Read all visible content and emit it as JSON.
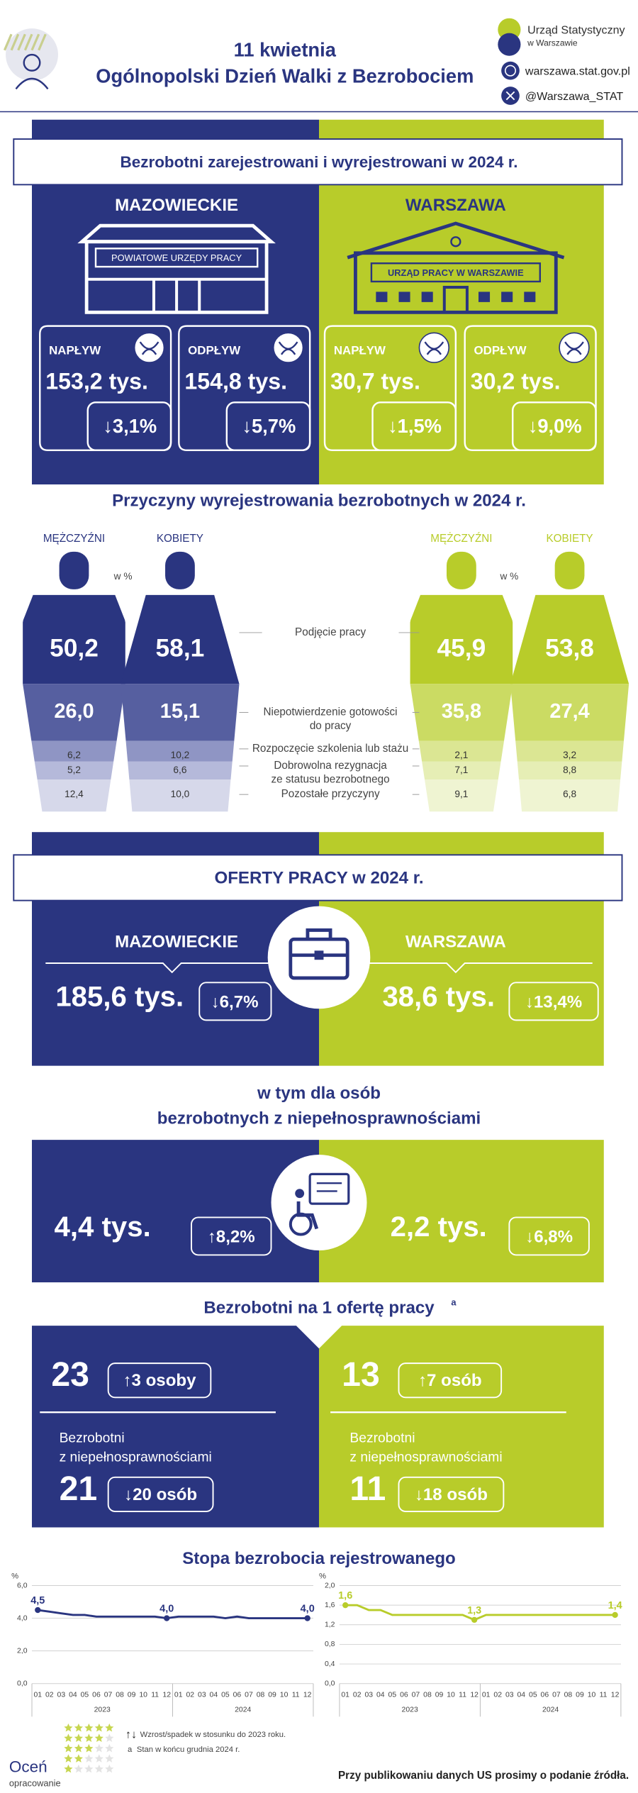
{
  "header": {
    "title_line1": "11 kwietnia",
    "title_line2": "Ogólnopolski Dzień Walki z Bezrobociem",
    "org_line1": "Urząd Statystyczny",
    "org_line2": "w Warszawie",
    "website": "warszawa.stat.gov.pl",
    "twitter": "@Warszawa_STAT"
  },
  "registered": {
    "title": "Bezrobotni zarejestrowani i wyrejestrowani w 2024 r.",
    "regions": [
      {
        "name": "MAZOWIECKIE",
        "building": "POWIATOWE URZĘDY PRACY",
        "inflow": {
          "label": "NAPŁYW",
          "value": "153,2 tys.",
          "change": "↓3,1%"
        },
        "outflow": {
          "label": "ODPŁYW",
          "value": "154,8 tys.",
          "change": "↓5,7%"
        }
      },
      {
        "name": "WARSZAWA",
        "building": "URZĄD PRACY W WARSZAWIE",
        "inflow": {
          "label": "NAPŁYW",
          "value": "30,7 tys.",
          "change": "↓1,5%"
        },
        "outflow": {
          "label": "ODPŁYW",
          "value": "30,2 tys.",
          "change": "↓9,0%"
        }
      }
    ]
  },
  "reasons": {
    "title": "Przyczyny wyrejestrowania bezrobotnych w 2024 r.",
    "unit": "w %",
    "groups": [
      {
        "label": "MĘŻCZYŹNI",
        "values": [
          "50,2",
          "26,0",
          "6,2",
          "5,2",
          "12,4"
        ]
      },
      {
        "label": "KOBIETY",
        "values": [
          "58,1",
          "15,1",
          "10,2",
          "6,6",
          "10,0"
        ]
      },
      {
        "label": "MĘŻCZYŹNI",
        "values": [
          "45,9",
          "35,8",
          "2,1",
          "7,1",
          "9,1"
        ]
      },
      {
        "label": "KOBIETY",
        "values": [
          "53,8",
          "27,4",
          "3,2",
          "8,8",
          "6,8"
        ]
      }
    ],
    "categories": [
      [
        "Podjęcie pracy"
      ],
      [
        "Niepotwierdzenie gotowości",
        "do pracy"
      ],
      [
        "Rozpoczęcie szkolenia lub stażu"
      ],
      [
        "Dobrowolna rezygnacja",
        "ze statusu bezrobotnego"
      ],
      [
        "Pozostałe przyczyny"
      ]
    ]
  },
  "offers": {
    "title": "OFERTY PRACY w 2024 r.",
    "regions": [
      {
        "name": "MAZOWIECKIE",
        "value": "185,6 tys.",
        "change": "↓6,7%"
      },
      {
        "name": "WARSZAWA",
        "value": "38,6 tys.",
        "change": "↓13,4%"
      }
    ]
  },
  "disabled_offers": {
    "title_line1": "w tym dla osób",
    "title_line2": "bezrobotnych z niepełnosprawnościami",
    "regions": [
      {
        "value": "4,4 tys.",
        "change": "↑8,2%"
      },
      {
        "value": "2,2 tys.",
        "change": "↓6,8%"
      }
    ]
  },
  "per_offer": {
    "title": "Bezrobotni na 1 ofertę pracy",
    "footnote_mark": "a",
    "regions": [
      {
        "total": "23",
        "total_change": "↑3 osoby",
        "disabled_label_line1": "Bezrobotni",
        "disabled_label_line2": "z niepełnosprawnościami",
        "disabled": "21",
        "disabled_change": "↓20 osób"
      },
      {
        "total": "13",
        "total_change": "↑7 osób",
        "disabled_label_line1": "Bezrobotni",
        "disabled_label_line2": "z niepełnosprawnościami",
        "disabled": "11",
        "disabled_change": "↓18 osób"
      }
    ]
  },
  "rate_title": "Stopa bezrobocia rejestrowanego",
  "chart_data": [
    {
      "type": "line",
      "y_label": "%",
      "categories": [
        "01",
        "02",
        "03",
        "04",
        "05",
        "06",
        "07",
        "08",
        "09",
        "10",
        "11",
        "12",
        "01",
        "02",
        "03",
        "04",
        "05",
        "06",
        "07",
        "08",
        "09",
        "10",
        "11",
        "12"
      ],
      "groups": [
        "2023",
        "2024"
      ],
      "values": [
        4.5,
        4.4,
        4.3,
        4.2,
        4.2,
        4.1,
        4.1,
        4.1,
        4.1,
        4.1,
        4.1,
        4.0,
        4.1,
        4.1,
        4.1,
        4.1,
        4.0,
        4.1,
        4.0,
        4.0,
        4.0,
        4.0,
        4.0,
        4.0
      ],
      "value_labels": [
        "4,5",
        null,
        null,
        null,
        null,
        null,
        null,
        null,
        null,
        null,
        null,
        "4,0",
        null,
        null,
        null,
        null,
        null,
        null,
        null,
        null,
        null,
        null,
        null,
        "4,0"
      ],
      "color": "#2a3580",
      "ylim": [
        0,
        6
      ],
      "yticks": [
        {
          "value": 0,
          "label": "0,0"
        },
        {
          "value": 2,
          "label": "2,0"
        },
        {
          "value": 4,
          "label": "4,0"
        },
        {
          "value": 6,
          "label": "6,0"
        }
      ],
      "grid": true
    },
    {
      "type": "line",
      "y_label": "%",
      "categories": [
        "01",
        "02",
        "03",
        "04",
        "05",
        "06",
        "07",
        "08",
        "09",
        "10",
        "11",
        "12",
        "01",
        "02",
        "03",
        "04",
        "05",
        "06",
        "07",
        "08",
        "09",
        "10",
        "11",
        "12"
      ],
      "groups": [
        "2023",
        "2024"
      ],
      "values": [
        1.6,
        1.6,
        1.5,
        1.5,
        1.4,
        1.4,
        1.4,
        1.4,
        1.4,
        1.4,
        1.4,
        1.3,
        1.4,
        1.4,
        1.4,
        1.4,
        1.4,
        1.4,
        1.4,
        1.4,
        1.4,
        1.4,
        1.4,
        1.4
      ],
      "value_labels": [
        "1,6",
        null,
        null,
        null,
        null,
        null,
        null,
        null,
        null,
        null,
        null,
        "1,3",
        null,
        null,
        null,
        null,
        null,
        null,
        null,
        null,
        null,
        null,
        null,
        "1,4"
      ],
      "color": "#b8cc2a",
      "ylim": [
        0,
        2
      ],
      "yticks": [
        {
          "value": 0,
          "label": "0,0"
        },
        {
          "value": 0.4,
          "label": "0,4"
        },
        {
          "value": 0.8,
          "label": "0,8"
        },
        {
          "value": 1.2,
          "label": "1,2"
        },
        {
          "value": 1.6,
          "label": "1,6"
        },
        {
          "value": 2,
          "label": "2,0"
        }
      ],
      "grid": true
    }
  ],
  "footer": {
    "rate_line1": "Oceń",
    "rate_line2": "opracowanie",
    "legend_arrows": "↑↓",
    "legend_change": "Wzrost/spadek w stosunku do 2023 roku.",
    "note_mark": "a",
    "note": "Stan w końcu grudnia 2024 r.",
    "source": "Przy publikowaniu danych US prosimy o podanie źródła."
  }
}
